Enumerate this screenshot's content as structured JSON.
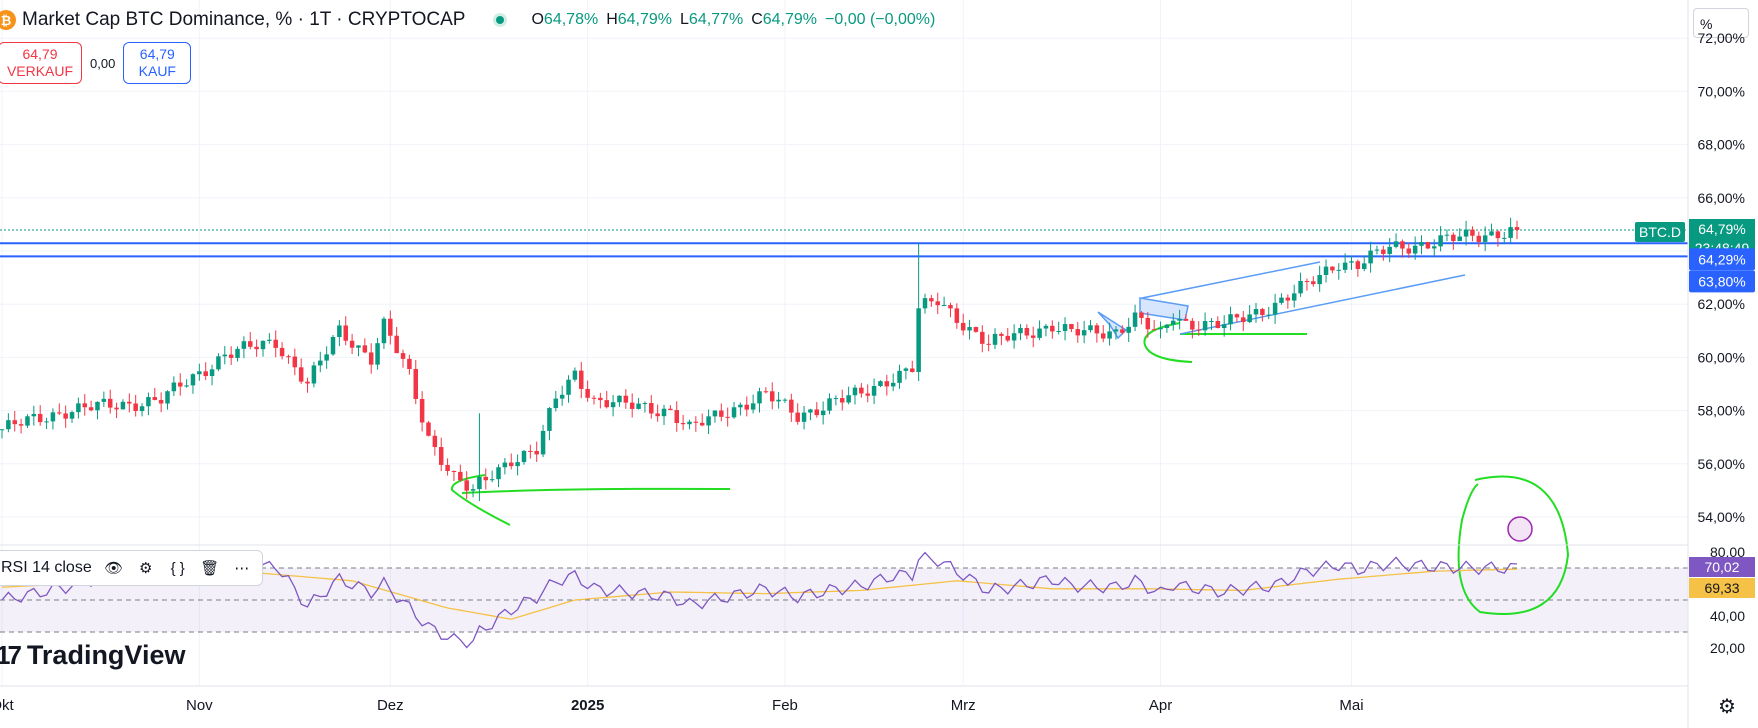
{
  "header": {
    "coin_icon": "bitcoin-icon",
    "title": "Market Cap BTC Dominance, % · 1T · CRYPTOCAP",
    "ohlc": [
      {
        "k": "O",
        "v": "64,78%"
      },
      {
        "k": "H",
        "v": "64,79%"
      },
      {
        "k": "L",
        "v": "64,77%"
      },
      {
        "k": "C",
        "v": "64,79%"
      }
    ],
    "change": "−0,00 (−0,00%)"
  },
  "trade": {
    "sell_price": "64,79",
    "sell_label": "VERKAUF",
    "spread": "0,00",
    "buy_price": "64,79",
    "buy_label": "KAUF"
  },
  "unit": "%",
  "rsi": {
    "label": "RSI 14 close",
    "value": "70,02",
    "ma_value": "69,33"
  },
  "brand": "TradingView",
  "badges": {
    "symbol": "BTC.D",
    "price": "64,79%",
    "countdown": "23:48:49",
    "line1": "64,29%",
    "line2": "63,80%"
  },
  "colors": {
    "up": "#089981",
    "down": "#f23645",
    "rsi": "#7e57c2",
    "rsi_ma": "#f5c146",
    "hline": "#2962ff",
    "annotation": "#22dd22"
  },
  "chart_data": [
    {
      "type": "candlestick",
      "title": "Market Cap BTC Dominance, % · 1T · CRYPTOCAP",
      "y_unit": "%",
      "ylim": [
        53.0,
        72.0
      ],
      "y_ticks": [
        "54,00%",
        "56,00%",
        "58,00%",
        "60,00%",
        "62,00%",
        "64,00%",
        "66,00%",
        "68,00%",
        "70,00%",
        "72,00%"
      ],
      "x_ticks": [
        "Okt",
        "Nov",
        "Dez",
        "2025",
        "Feb",
        "Mrz",
        "Apr",
        "Mai"
      ],
      "horizontal_lines": [
        64.29,
        63.8
      ],
      "last_price": 64.79,
      "waypoints": [
        [
          0,
          57.3
        ],
        [
          10,
          58.0
        ],
        [
          25,
          58.4
        ],
        [
          35,
          60.1
        ],
        [
          43,
          60.6
        ],
        [
          48,
          59.0
        ],
        [
          53,
          61.0
        ],
        [
          58,
          60.0
        ],
        [
          60,
          61.2
        ],
        [
          64,
          59.3
        ],
        [
          67,
          57.0
        ],
        [
          71,
          55.5
        ],
        [
          74,
          54.9
        ],
        [
          75,
          55.2
        ],
        [
          80,
          56.2
        ],
        [
          84,
          56.5
        ],
        [
          87,
          58.4
        ],
        [
          90,
          59.4
        ],
        [
          93,
          58.4
        ],
        [
          98,
          58.2
        ],
        [
          105,
          58.0
        ],
        [
          108,
          57.3
        ],
        [
          114,
          58.0
        ],
        [
          120,
          58.6
        ],
        [
          125,
          57.8
        ],
        [
          130,
          58.3
        ],
        [
          135,
          58.6
        ],
        [
          140,
          59.3
        ],
        [
          143,
          59.6
        ],
        [
          144,
          61.8
        ],
        [
          147,
          62.1
        ],
        [
          150,
          61.5
        ],
        [
          155,
          60.5
        ],
        [
          160,
          60.9
        ],
        [
          165,
          61.2
        ],
        [
          168,
          60.9
        ],
        [
          175,
          61.0
        ],
        [
          178,
          61.5
        ],
        [
          182,
          60.8
        ],
        [
          184,
          61.6
        ],
        [
          186,
          61.3
        ],
        [
          192,
          61.2
        ],
        [
          195,
          61.5
        ],
        [
          200,
          62.0
        ],
        [
          205,
          62.7
        ],
        [
          210,
          63.6
        ],
        [
          213,
          63.5
        ],
        [
          218,
          64.1
        ],
        [
          224,
          64.3
        ],
        [
          232,
          64.6
        ],
        [
          238,
          64.79
        ]
      ]
    },
    {
      "type": "line",
      "title": "RSI 14 close",
      "ylim": [
        20,
        80
      ],
      "y_ticks": [
        "20,00",
        "40,00",
        "80,00"
      ],
      "levels": [
        70,
        50,
        30
      ],
      "series": [
        {
          "name": "RSI",
          "waypoints": [
            [
              0,
              50
            ],
            [
              10,
              58
            ],
            [
              25,
              75
            ],
            [
              35,
              64
            ],
            [
              43,
              72
            ],
            [
              48,
              46
            ],
            [
              53,
              63
            ],
            [
              58,
              55
            ],
            [
              60,
              60
            ],
            [
              64,
              45
            ],
            [
              67,
              33
            ],
            [
              71,
              25
            ],
            [
              74,
              24
            ],
            [
              75,
              30
            ],
            [
              80,
              44
            ],
            [
              84,
              52
            ],
            [
              87,
              62
            ],
            [
              90,
              65
            ],
            [
              93,
              57
            ],
            [
              98,
              55
            ],
            [
              105,
              52
            ],
            [
              108,
              47
            ],
            [
              114,
              52
            ],
            [
              120,
              57
            ],
            [
              125,
              52
            ],
            [
              130,
              56
            ],
            [
              135,
              59
            ],
            [
              140,
              65
            ],
            [
              143,
              66
            ],
            [
              144,
              76
            ],
            [
              147,
              75
            ],
            [
              150,
              68
            ],
            [
              155,
              56
            ],
            [
              160,
              59
            ],
            [
              165,
              63
            ],
            [
              168,
              59
            ],
            [
              175,
              58
            ],
            [
              178,
              62
            ],
            [
              182,
              54
            ],
            [
              184,
              60
            ],
            [
              186,
              58
            ],
            [
              192,
              55
            ],
            [
              195,
              57
            ],
            [
              200,
              59
            ],
            [
              205,
              68
            ],
            [
              210,
              72
            ],
            [
              213,
              69
            ],
            [
              218,
              73
            ],
            [
              224,
              71
            ],
            [
              232,
              70
            ],
            [
              238,
              70
            ]
          ]
        },
        {
          "name": "MA",
          "waypoints": [
            [
              0,
              58
            ],
            [
              20,
              62
            ],
            [
              40,
              67
            ],
            [
              55,
              62
            ],
            [
              70,
              45
            ],
            [
              80,
              38
            ],
            [
              90,
              50
            ],
            [
              105,
              55
            ],
            [
              120,
              54
            ],
            [
              135,
              56
            ],
            [
              150,
              62
            ],
            [
              165,
              57
            ],
            [
              180,
              57
            ],
            [
              195,
              56
            ],
            [
              210,
              63
            ],
            [
              225,
              68
            ],
            [
              238,
              69.3
            ]
          ]
        }
      ]
    }
  ]
}
